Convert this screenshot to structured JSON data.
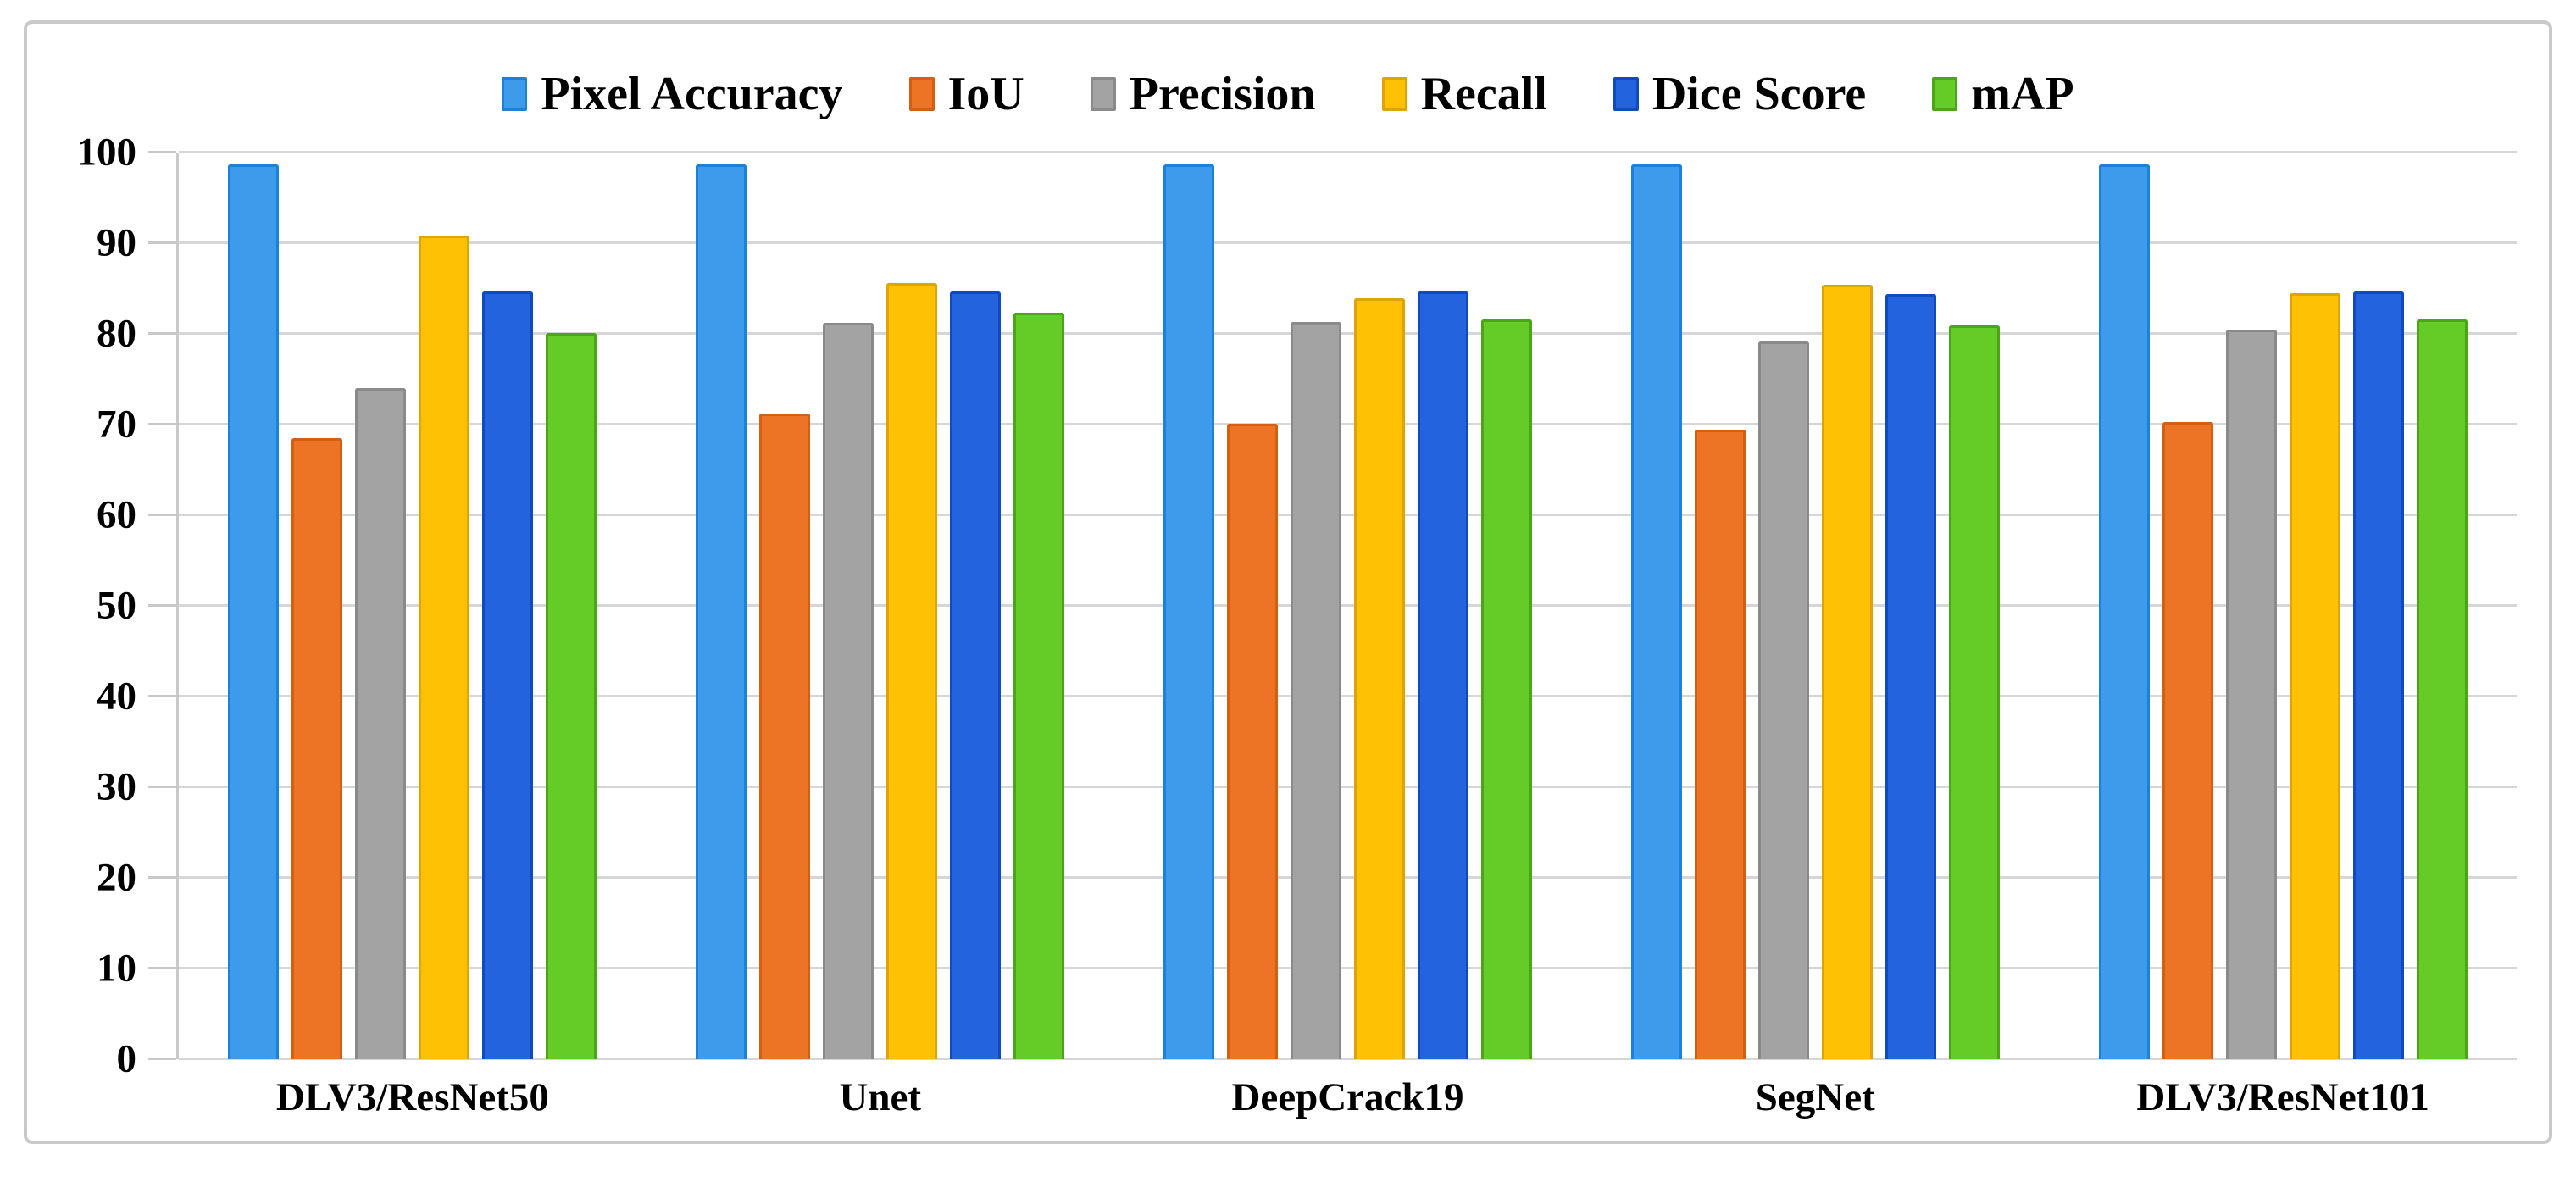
{
  "figure": {
    "background": "#ffffff",
    "border_color": "#c9c9c9",
    "gridline_color": "#d6d6d6"
  },
  "chart_data": {
    "type": "bar",
    "title": "",
    "xlabel": "",
    "ylabel": "",
    "ylim": [
      0,
      100
    ],
    "yticks": [
      0,
      10,
      20,
      30,
      40,
      50,
      60,
      70,
      80,
      90,
      100
    ],
    "grid": "horizontal",
    "legend_position": "top",
    "categories": [
      "DLV3/ResNet50",
      "Unet",
      "DeepCrack19",
      "SegNet",
      "DLV3/ResNet101"
    ],
    "series": [
      {
        "name": "Pixel Accuracy",
        "color": "#3e9aea",
        "border": "#1b82dc",
        "values": [
          98.7,
          98.7,
          98.7,
          98.7,
          98.7
        ]
      },
      {
        "name": "IoU",
        "color": "#ee7425",
        "border": "#d55e11",
        "values": [
          68.5,
          71.2,
          70.1,
          69.4,
          70.3
        ]
      },
      {
        "name": "Precision",
        "color": "#a3a3a3",
        "border": "#8a8a8a",
        "values": [
          74.0,
          81.2,
          81.3,
          79.2,
          80.5
        ]
      },
      {
        "name": "Recall",
        "color": "#ffc103",
        "border": "#dfa400",
        "values": [
          90.8,
          85.6,
          83.9,
          85.4,
          84.5
        ]
      },
      {
        "name": "Dice Score",
        "color": "#2363dd",
        "border": "#0f4abf",
        "values": [
          84.7,
          84.7,
          84.7,
          84.4,
          84.7
        ]
      },
      {
        "name": "mAP",
        "color": "#64cb27",
        "border": "#4ba616",
        "values": [
          80.1,
          82.3,
          81.6,
          80.9,
          81.6
        ]
      }
    ]
  }
}
